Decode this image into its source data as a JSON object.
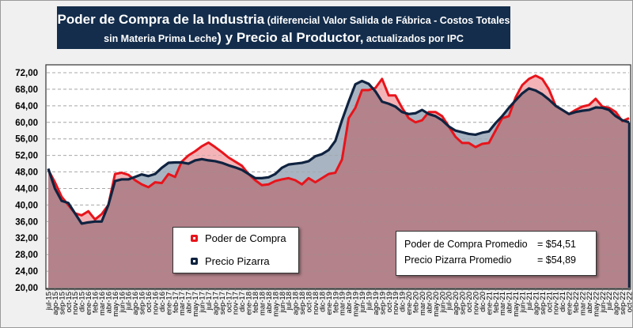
{
  "title": {
    "part1": "Poder de Compra de la Industria",
    "part2": " (diferencial Valor Salida de Fábrica - Costos Totales sin Materia Prima Leche",
    "part3": ") y Precio al Productor,",
    "part4": " actualizados por IPC"
  },
  "legend": {
    "items": [
      {
        "label": "Poder de Compra",
        "color": "#e8141b"
      },
      {
        "label": "Precio Pizarra",
        "color": "#0f2340"
      }
    ]
  },
  "stats": {
    "rows": [
      {
        "label": "Poder de Compra Promedio",
        "value": "= $54,51"
      },
      {
        "label": "Precio Pizarra Promedio",
        "value": "= $54,89"
      }
    ]
  },
  "chart_data": {
    "type": "area",
    "title": "Poder de Compra de la Industria (diferencial Valor Salida de Fábrica - Costos Totales sin Materia Prima Leche) y Precio al Productor, actualizados por IPC",
    "xlabel": "",
    "ylabel": "",
    "ylim": [
      20,
      72
    ],
    "y_ticks": [
      "20,00",
      "24,00",
      "28,00",
      "32,00",
      "36,00",
      "40,00",
      "44,00",
      "48,00",
      "52,00",
      "56,00",
      "60,00",
      "64,00",
      "68,00",
      "72,00"
    ],
    "grid": true,
    "categories": [
      "jul-15",
      "ago-15",
      "sep-15",
      "oct-15",
      "nov-15",
      "dic-15",
      "ene-16",
      "feb-16",
      "mar-16",
      "abr-16",
      "may-16",
      "jun-16",
      "jul-16",
      "ago-16",
      "sep-16",
      "oct-16",
      "nov-16",
      "dic-16",
      "ene-17",
      "feb-17",
      "mar-17",
      "abr-17",
      "may-17",
      "jun-17",
      "jul-17",
      "ago-17",
      "sep-17",
      "oct-17",
      "nov-17",
      "dic-17",
      "ene-18",
      "feb-18",
      "mar-18",
      "abr-18",
      "may-18",
      "jun-18",
      "jul-18",
      "ago-18",
      "sep-18",
      "oct-18",
      "nov-18",
      "dic-18",
      "ene-19",
      "feb-19",
      "mar-19",
      "abr-19",
      "may-19",
      "jun-19",
      "jul-19",
      "ago-19",
      "sep-19",
      "oct-19",
      "nov-19",
      "dic-19",
      "ene-20",
      "feb-20",
      "mar-20",
      "abr-20",
      "may-20",
      "jun-20",
      "jul-20",
      "ago-20",
      "sep-20",
      "oct-20",
      "nov-20",
      "dic-20",
      "ene-21",
      "feb-21",
      "mar-21",
      "abr-21",
      "may-21",
      "jun-21",
      "jul-21",
      "ago-21",
      "sep-21",
      "oct-21",
      "nov-21",
      "dic-21",
      "ene-22",
      "feb-22",
      "mar-22",
      "abr-22",
      "may-22",
      "jun-22",
      "jul-22",
      "ago-22",
      "sep-22",
      "oct-22"
    ],
    "series": [
      {
        "name": "Poder de Compra",
        "color": "#e8141b",
        "fill": "#f4b4b7",
        "values": [
          48.5,
          45.5,
          42,
          40,
          38,
          37.5,
          38.5,
          36.5,
          37.8,
          40,
          47.5,
          47.8,
          47.3,
          46,
          45,
          44.3,
          45.5,
          45.3,
          47.5,
          46.8,
          50.5,
          52,
          53,
          54.2,
          55.1,
          54,
          52.8,
          51.5,
          50.5,
          49.5,
          47.5,
          46,
          44.8,
          45,
          45.8,
          46.2,
          46.5,
          46,
          45,
          46.5,
          45.5,
          46.5,
          47.5,
          47.8,
          51,
          61,
          63.5,
          67.8,
          67.8,
          68.3,
          70.5,
          66.5,
          66.5,
          63.5,
          61,
          60,
          60.5,
          62.5,
          62.5,
          61.5,
          59,
          56.5,
          55,
          55,
          54,
          54.8,
          55,
          58,
          61,
          61.5,
          66,
          69,
          70.5,
          71.3,
          70.5,
          68,
          64,
          63,
          62,
          63,
          63.8,
          64.2,
          65.7,
          63.8,
          63.5,
          62.5,
          60.3,
          61
        ]
      },
      {
        "name": "Precio Pizarra",
        "color": "#0f2340",
        "fill": "#a9b4c2",
        "values": [
          48.8,
          44,
          41,
          40.5,
          38,
          35.5,
          35.8,
          36,
          36,
          40,
          45.8,
          46.2,
          46.2,
          46.8,
          47.4,
          47,
          47.5,
          49,
          50.2,
          50.3,
          50.3,
          50,
          50.8,
          51.1,
          50.8,
          50.6,
          50.2,
          49.6,
          49.1,
          48.5,
          47.5,
          46.5,
          46.5,
          46.7,
          47.5,
          49,
          49.8,
          50,
          50.2,
          50.6,
          51.8,
          52.3,
          53.3,
          55.5,
          60.5,
          65,
          69.2,
          70,
          69.3,
          67.5,
          65,
          64.5,
          63.8,
          62.5,
          62,
          62.2,
          63,
          62,
          61.5,
          60.5,
          59,
          58,
          57.6,
          57.2,
          57,
          57.5,
          57.8,
          59.8,
          61.5,
          63.5,
          65.3,
          67,
          68.2,
          67.7,
          66.8,
          65.5,
          64,
          63,
          62,
          62.5,
          62.8,
          63,
          63.6,
          63.5,
          63,
          61.5,
          60.5,
          60
        ]
      }
    ],
    "overlap_fill": "#b3828a",
    "legend_position": "bottom-left"
  }
}
